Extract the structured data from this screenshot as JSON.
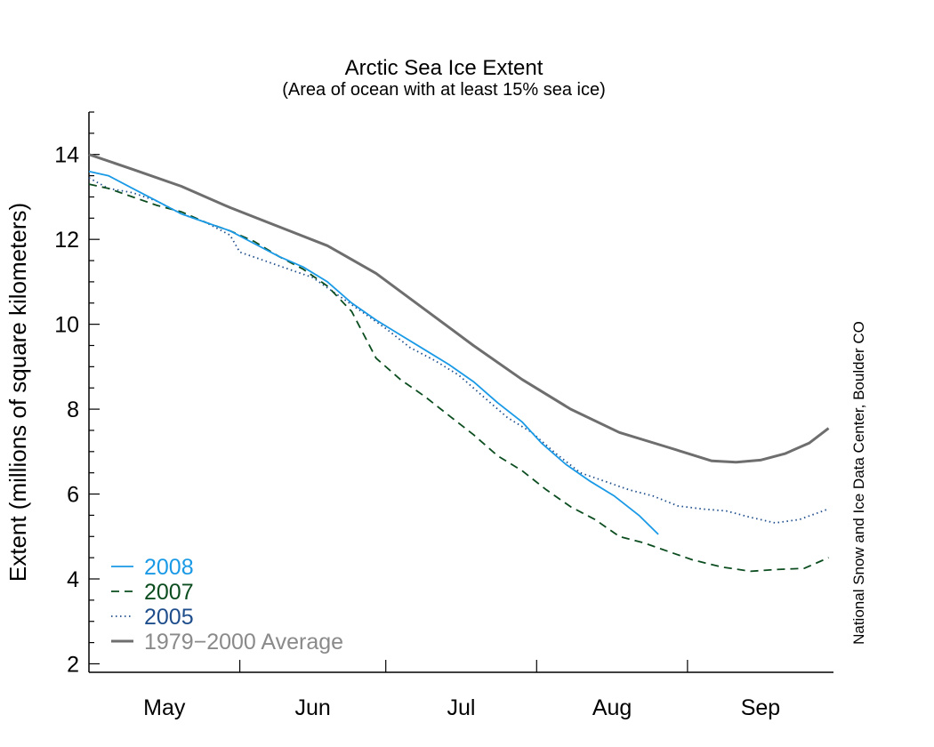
{
  "chart_data": {
    "type": "line",
    "title": "Arctic Sea Ice Extent",
    "subtitle": "(Area of ocean with at least 15% sea ice)",
    "xlabel": "",
    "ylabel": "Extent (millions of square kilometers)",
    "credit": "National Snow and Ice Data Center, Boulder CO",
    "xlim": [
      "2000-05-01",
      "2000-09-30"
    ],
    "ylim": [
      1.8,
      15
    ],
    "yticks": [
      2,
      4,
      6,
      8,
      10,
      12,
      14
    ],
    "month_labels": [
      "May",
      "Jun",
      "Jul",
      "Aug",
      "Sep"
    ],
    "grid": false,
    "legend_position": "bottom-left",
    "series": [
      {
        "name": "2008",
        "color": "#1a9ae6",
        "style": "solid",
        "points": [
          [
            "2000-05-01",
            13.6
          ],
          [
            "2000-05-05",
            13.5
          ],
          [
            "2000-05-10",
            13.2
          ],
          [
            "2000-05-15",
            12.9
          ],
          [
            "2000-05-20",
            12.6
          ],
          [
            "2000-05-25",
            12.4
          ],
          [
            "2000-05-30",
            12.2
          ],
          [
            "2000-06-04",
            11.9
          ],
          [
            "2000-06-09",
            11.6
          ],
          [
            "2000-06-14",
            11.35
          ],
          [
            "2000-06-19",
            11.0
          ],
          [
            "2000-06-24",
            10.5
          ],
          [
            "2000-06-29",
            10.1
          ],
          [
            "2000-07-04",
            9.75
          ],
          [
            "2000-07-09",
            9.4
          ],
          [
            "2000-07-14",
            9.05
          ],
          [
            "2000-07-19",
            8.65
          ],
          [
            "2000-07-24",
            8.15
          ],
          [
            "2000-07-29",
            7.7
          ],
          [
            "2000-08-02",
            7.2
          ],
          [
            "2000-08-07",
            6.7
          ],
          [
            "2000-08-12",
            6.3
          ],
          [
            "2000-08-17",
            5.95
          ],
          [
            "2000-08-22",
            5.5
          ],
          [
            "2000-08-26",
            5.05
          ]
        ]
      },
      {
        "name": "2007",
        "color": "#0b4d1f",
        "style": "dashed",
        "points": [
          [
            "2000-05-01",
            13.3
          ],
          [
            "2000-05-05",
            13.2
          ],
          [
            "2000-05-10",
            13.0
          ],
          [
            "2000-05-15",
            12.8
          ],
          [
            "2000-05-20",
            12.65
          ],
          [
            "2000-05-25",
            12.4
          ],
          [
            "2000-05-30",
            12.2
          ],
          [
            "2000-06-04",
            11.95
          ],
          [
            "2000-06-09",
            11.6
          ],
          [
            "2000-06-14",
            11.3
          ],
          [
            "2000-06-19",
            10.9
          ],
          [
            "2000-06-24",
            10.3
          ],
          [
            "2000-06-29",
            9.2
          ],
          [
            "2000-07-04",
            8.7
          ],
          [
            "2000-07-09",
            8.3
          ],
          [
            "2000-07-14",
            7.85
          ],
          [
            "2000-07-19",
            7.4
          ],
          [
            "2000-07-24",
            6.9
          ],
          [
            "2000-07-29",
            6.55
          ],
          [
            "2000-08-03",
            6.1
          ],
          [
            "2000-08-08",
            5.7
          ],
          [
            "2000-08-13",
            5.4
          ],
          [
            "2000-08-18",
            5.0
          ],
          [
            "2000-08-23",
            4.85
          ],
          [
            "2000-08-28",
            4.65
          ],
          [
            "2000-09-02",
            4.45
          ],
          [
            "2000-09-08",
            4.28
          ],
          [
            "2000-09-14",
            4.18
          ],
          [
            "2000-09-19",
            4.22
          ],
          [
            "2000-09-25",
            4.25
          ],
          [
            "2000-09-30",
            4.5
          ]
        ]
      },
      {
        "name": "2005",
        "color": "#1f4e8c",
        "style": "dotted",
        "points": [
          [
            "2000-05-01",
            13.45
          ],
          [
            "2000-05-05",
            13.2
          ],
          [
            "2000-05-10",
            13.1
          ],
          [
            "2000-05-15",
            12.9
          ],
          [
            "2000-05-20",
            12.6
          ],
          [
            "2000-05-25",
            12.4
          ],
          [
            "2000-05-30",
            12.1
          ],
          [
            "2000-06-01",
            11.7
          ],
          [
            "2000-06-06",
            11.5
          ],
          [
            "2000-06-11",
            11.3
          ],
          [
            "2000-06-16",
            11.1
          ],
          [
            "2000-06-21",
            10.7
          ],
          [
            "2000-06-26",
            10.3
          ],
          [
            "2000-07-01",
            9.9
          ],
          [
            "2000-07-06",
            9.45
          ],
          [
            "2000-07-11",
            9.15
          ],
          [
            "2000-07-16",
            8.8
          ],
          [
            "2000-07-21",
            8.3
          ],
          [
            "2000-07-26",
            7.8
          ],
          [
            "2000-07-31",
            7.45
          ],
          [
            "2000-08-05",
            6.95
          ],
          [
            "2000-08-10",
            6.5
          ],
          [
            "2000-08-15",
            6.3
          ],
          [
            "2000-08-20",
            6.1
          ],
          [
            "2000-08-25",
            5.95
          ],
          [
            "2000-08-30",
            5.72
          ],
          [
            "2000-09-04",
            5.65
          ],
          [
            "2000-09-09",
            5.6
          ],
          [
            "2000-09-14",
            5.45
          ],
          [
            "2000-09-19",
            5.32
          ],
          [
            "2000-09-24",
            5.4
          ],
          [
            "2000-09-30",
            5.65
          ]
        ]
      },
      {
        "name": "1979−2000 Average",
        "color": "#6e6e6e",
        "style": "solid",
        "points": [
          [
            "2000-05-01",
            14.0
          ],
          [
            "2000-05-10",
            13.65
          ],
          [
            "2000-05-20",
            13.25
          ],
          [
            "2000-05-30",
            12.75
          ],
          [
            "2000-06-09",
            12.3
          ],
          [
            "2000-06-19",
            11.85
          ],
          [
            "2000-06-29",
            11.2
          ],
          [
            "2000-07-09",
            10.35
          ],
          [
            "2000-07-19",
            9.5
          ],
          [
            "2000-07-29",
            8.7
          ],
          [
            "2000-08-08",
            8.0
          ],
          [
            "2000-08-18",
            7.45
          ],
          [
            "2000-08-28",
            7.1
          ],
          [
            "2000-09-06",
            6.78
          ],
          [
            "2000-09-11",
            6.75
          ],
          [
            "2000-09-16",
            6.8
          ],
          [
            "2000-09-21",
            6.95
          ],
          [
            "2000-09-26",
            7.2
          ],
          [
            "2000-09-30",
            7.55
          ]
        ]
      }
    ]
  }
}
